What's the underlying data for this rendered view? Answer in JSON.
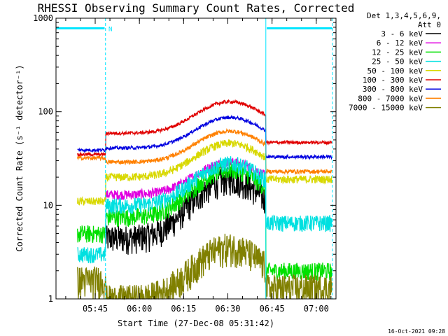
{
  "chart_data": {
    "type": "line",
    "title": "RHESSI Observing Summary Count Rates, Corrected",
    "xlabel": "Start Time (27-Dec-08 05:31:42)",
    "ylabel": "Corrected Count Rate (s⁻¹ detector⁻¹)",
    "y_scale": "log",
    "ylim": [
      1,
      1000
    ],
    "xlim_minutes": [
      0,
      95
    ],
    "x_tick_labels": [
      "05:45",
      "06:00",
      "06:15",
      "06:30",
      "06:45",
      "07:00"
    ],
    "x_tick_minutes": [
      13.3,
      28.3,
      43.3,
      58.3,
      73.3,
      88.3
    ],
    "y_tick_labels": [
      "1",
      "10",
      "100",
      "1000"
    ],
    "y_tick_values": [
      1,
      10,
      100,
      1000
    ],
    "legend_header": [
      "Det 1,3,4,5,6,9,",
      "Att 0"
    ],
    "legend_position": "right",
    "footer_timestamp": "16-Oct-2021 09:28",
    "night_marker": "N",
    "attenuator_bars": [
      {
        "from_min": 0,
        "to_min": 16.5,
        "level": 780,
        "color": "#00e5ff"
      },
      {
        "from_min": 71.5,
        "to_min": 93.7,
        "level": 780,
        "color": "#00e5ff"
      }
    ],
    "data_gaps": [
      {
        "label": "eclipse boundary",
        "minute": 16.8
      },
      {
        "label": "night start",
        "minute": 71.2
      },
      {
        "label": "window end",
        "minute": 93.8
      }
    ],
    "series": [
      {
        "name": "3 - 6 keV",
        "color": "#000000",
        "pre": null,
        "base": 4.5,
        "peak": 19,
        "post": null,
        "noise": 0.35
      },
      {
        "name": "6 - 12 keV",
        "color": "#e000e0",
        "pre": null,
        "base": 13,
        "peak": 29,
        "post": null,
        "noise": 0.12
      },
      {
        "name": "12 - 25 keV",
        "color": "#00e000",
        "pre": 5,
        "base": 7.5,
        "peak": 24,
        "post": 2,
        "noise": 0.22
      },
      {
        "name": "25 - 50 keV",
        "color": "#00e0e0",
        "pre": 3,
        "base": 10,
        "peak": 28,
        "post": 6.5,
        "noise": 0.2
      },
      {
        "name": "50 - 100 keV",
        "color": "#d8d800",
        "pre": 11,
        "base": 20,
        "peak": 46,
        "post": 19,
        "noise": 0.1
      },
      {
        "name": "100 - 300 keV",
        "color": "#e00000",
        "pre": 35,
        "base": 59,
        "peak": 128,
        "post": 47,
        "noise": 0.04
      },
      {
        "name": "300 - 800 keV",
        "color": "#0000e0",
        "pre": 39,
        "base": 41,
        "peak": 87,
        "post": 33,
        "noise": 0.04
      },
      {
        "name": "800 - 7000 keV",
        "color": "#ff8000",
        "pre": 32,
        "base": 29,
        "peak": 62,
        "post": 23,
        "noise": 0.05
      },
      {
        "name": "7000 - 15000 keV",
        "color": "#808000",
        "pre": 1.6,
        "base": 1,
        "peak": 3.6,
        "post": 1.3,
        "noise": 0.4
      }
    ]
  }
}
